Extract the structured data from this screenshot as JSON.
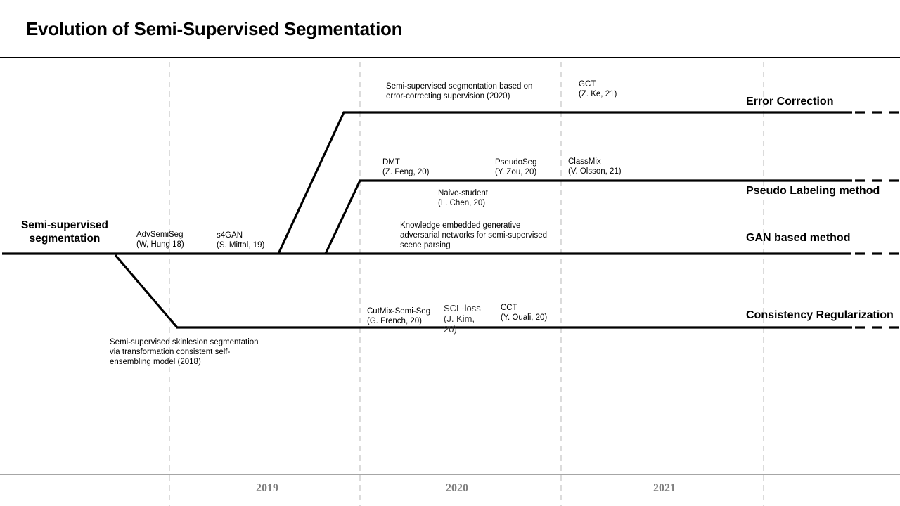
{
  "title": "Evolution of Semi-Supervised Segmentation",
  "root_label": [
    "Semi-supervised",
    "segmentation"
  ],
  "tracks": {
    "error_correction": "Error Correction",
    "pseudo_labeling": "Pseudo Labeling method",
    "gan_based": "GAN based method",
    "consistency": "Consistency Regularization"
  },
  "years": [
    "2019",
    "2020",
    "2021"
  ],
  "methods": [
    {
      "id": "advsemiseg",
      "lines": [
        "AdvSemiSeg",
        "(W, Hung 18)"
      ]
    },
    {
      "id": "s4gan",
      "lines": [
        "s4GAN",
        "(S. Mittal, 19)"
      ]
    },
    {
      "id": "ecs",
      "lines": [
        "Semi-supervised segmentation based on",
        "error-correcting supervision (2020)"
      ]
    },
    {
      "id": "gct",
      "lines": [
        "GCT",
        "(Z. Ke, 21)"
      ]
    },
    {
      "id": "dmt",
      "lines": [
        "DMT",
        "(Z. Feng, 20)"
      ]
    },
    {
      "id": "pseudoseg",
      "lines": [
        "PseudoSeg",
        "(Y. Zou, 20)"
      ]
    },
    {
      "id": "classmix",
      "lines": [
        "ClassMix",
        "(V. Olsson, 21)"
      ]
    },
    {
      "id": "naive-student",
      "lines": [
        "Naive-student",
        "(L. Chen, 20)"
      ]
    },
    {
      "id": "kegan",
      "lines": [
        "Knowledge embedded generative",
        "adversarial networks for semi-supervised",
        "scene parsing"
      ]
    },
    {
      "id": "cutmix",
      "lines": [
        "CutMix-Semi-Seg",
        "(G. French, 20)"
      ]
    },
    {
      "id": "scl-loss",
      "lines": [
        "SCL-loss",
        "(J. Kim,",
        "20)"
      ]
    },
    {
      "id": "cct",
      "lines": [
        "CCT",
        "(Y. Ouali, 20)"
      ]
    },
    {
      "id": "skinlesion",
      "lines": [
        "Semi-supervised skinlesion segmentation",
        "via transformation consistent self-",
        "ensembling model (2018)"
      ]
    }
  ]
}
